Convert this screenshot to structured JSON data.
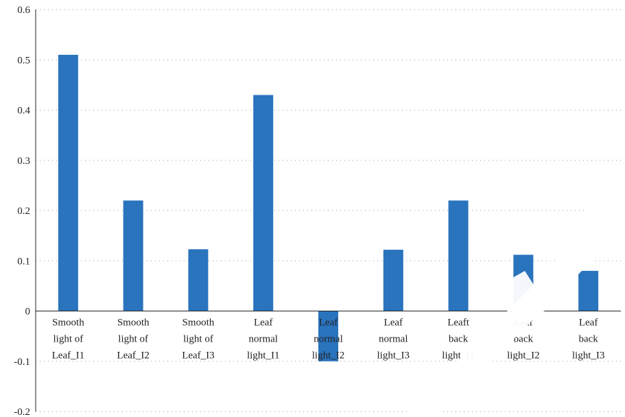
{
  "chart_data": {
    "type": "bar",
    "categories": [
      [
        "Smooth",
        "light of",
        "Leaf_I1"
      ],
      [
        "Smooth",
        "light of",
        "Leaf_I2"
      ],
      [
        "Smooth",
        "light of",
        "Leaf_I3"
      ],
      [
        "Leaf",
        "normal",
        "light_I1"
      ],
      [
        "Leaf",
        "normal",
        "light_I2"
      ],
      [
        "Leaf",
        "normal",
        "light_I3"
      ],
      [
        "Leaft",
        "back",
        "light_I1"
      ],
      [
        "Leaf",
        "back",
        "light_I2"
      ],
      [
        "Leaf",
        "back",
        "light_I3"
      ]
    ],
    "values": [
      0.51,
      0.22,
      0.123,
      0.43,
      -0.1,
      0.122,
      0.22,
      0.112,
      0.08
    ],
    "ylim": [
      -0.2,
      0.6
    ],
    "yticks": [
      "0.6",
      "0.5",
      "0.4",
      "0.3",
      "0.2",
      "0.1",
      "0",
      "-0.1",
      "-0.2"
    ],
    "ytick_values": [
      0.6,
      0.5,
      0.4,
      0.3,
      0.2,
      0.1,
      0,
      -0.1,
      -0.2
    ],
    "grid": "horizontal dotted",
    "bar_color": "#2a73bd",
    "title": "",
    "xlabel": "",
    "ylabel": ""
  },
  "watermark_color": "#ffffff"
}
